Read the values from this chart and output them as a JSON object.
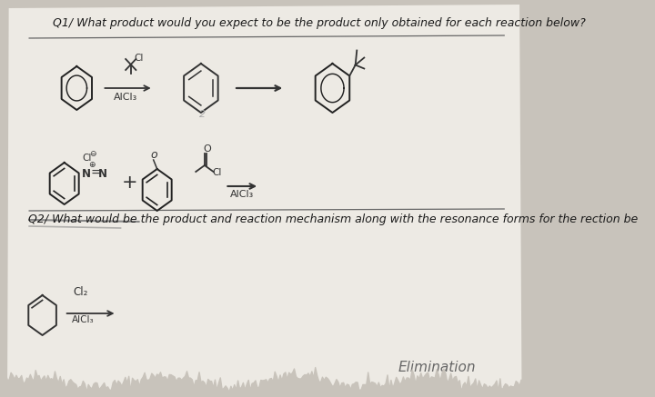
{
  "background_color": "#c8c3bb",
  "paper_color": "#edeae4",
  "title_q1": "Q1/ What product would you expect to be the product only obtained for each reaction below?",
  "title_q2": "Q2/ What would be the product and reaction mechanism along with the resonance forms for the rection be",
  "alcl3_label": "AlCl₃",
  "cl2_label": "Cl₂",
  "bottom_text": "Elimination",
  "font_size_title": 9.0,
  "font_size_label": 8,
  "text_color": "#1a1a1a"
}
